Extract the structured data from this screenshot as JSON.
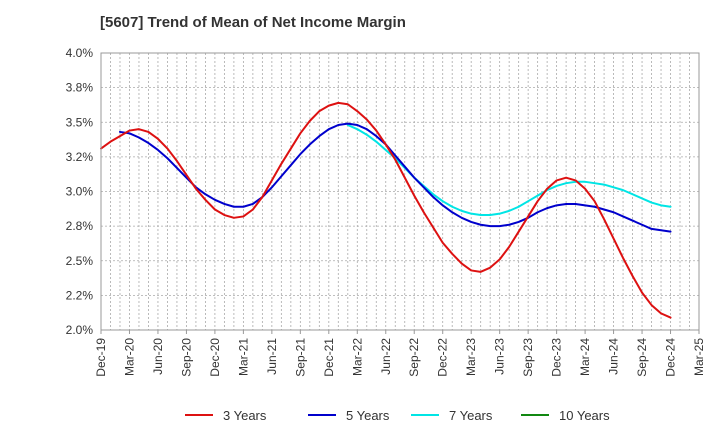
{
  "chart_data": {
    "type": "line",
    "title": "[5607]  Trend of Mean of Net Income Margin",
    "xlabel": "",
    "ylabel": "",
    "ylim": [
      2.0,
      4.0
    ],
    "yticks": [
      "4.0%",
      "3.8%",
      "3.5%",
      "3.2%",
      "3.0%",
      "2.8%",
      "2.5%",
      "2.2%",
      "2.0%"
    ],
    "ytick_values": [
      4.0,
      3.75,
      3.5,
      3.25,
      3.0,
      2.75,
      2.5,
      2.25,
      2.0
    ],
    "xticks": [
      "Dec-19",
      "Mar-20",
      "Jun-20",
      "Sep-20",
      "Dec-20",
      "Mar-21",
      "Jun-21",
      "Sep-21",
      "Dec-21",
      "Mar-22",
      "Jun-22",
      "Sep-22",
      "Dec-22",
      "Mar-23",
      "Jun-23",
      "Sep-23",
      "Dec-23",
      "Mar-24",
      "Jun-24",
      "Sep-24",
      "Dec-24",
      "Mar-25"
    ],
    "grid": true,
    "legend_position": "bottom",
    "colors": {
      "3 Years": "#dd1111",
      "5 Years": "#0000cc",
      "7 Years": "#00e5e5",
      "10 Years": "#118811"
    },
    "series": [
      {
        "name": "3 Years",
        "x": [
          "Dec-19",
          "Jan-20",
          "Feb-20",
          "Mar-20",
          "Apr-20",
          "May-20",
          "Jun-20",
          "Jul-20",
          "Aug-20",
          "Sep-20",
          "Oct-20",
          "Nov-20",
          "Dec-20",
          "Jan-21",
          "Feb-21",
          "Mar-21",
          "Apr-21",
          "May-21",
          "Jun-21",
          "Jul-21",
          "Aug-21",
          "Sep-21",
          "Oct-21",
          "Nov-21",
          "Dec-21",
          "Jan-22",
          "Feb-22",
          "Mar-22",
          "Apr-22",
          "May-22",
          "Jun-22",
          "Jul-22",
          "Aug-22",
          "Sep-22",
          "Oct-22",
          "Nov-22",
          "Dec-22",
          "Jan-23",
          "Feb-23",
          "Mar-23",
          "Apr-23",
          "May-23",
          "Jun-23",
          "Jul-23",
          "Aug-23",
          "Sep-23",
          "Oct-23",
          "Nov-23",
          "Dec-23",
          "Jan-24",
          "Feb-24",
          "Mar-24",
          "Apr-24",
          "May-24",
          "Jun-24",
          "Jul-24",
          "Aug-24",
          "Sep-24",
          "Oct-24",
          "Nov-24",
          "Dec-24"
        ],
        "values": [
          3.31,
          3.36,
          3.4,
          3.44,
          3.45,
          3.43,
          3.38,
          3.31,
          3.22,
          3.12,
          3.02,
          2.94,
          2.87,
          2.83,
          2.81,
          2.82,
          2.87,
          2.96,
          3.08,
          3.2,
          3.31,
          3.42,
          3.51,
          3.58,
          3.62,
          3.64,
          3.63,
          3.58,
          3.52,
          3.44,
          3.34,
          3.23,
          3.1,
          2.97,
          2.85,
          2.74,
          2.63,
          2.55,
          2.48,
          2.43,
          2.42,
          2.45,
          2.51,
          2.6,
          2.71,
          2.82,
          2.93,
          3.02,
          3.08,
          3.1,
          3.08,
          3.02,
          2.93,
          2.8,
          2.66,
          2.52,
          2.39,
          2.27,
          2.18,
          2.12,
          2.09
        ]
      },
      {
        "name": "5 Years",
        "x": [
          "Feb-20",
          "Mar-20",
          "Apr-20",
          "May-20",
          "Jun-20",
          "Jul-20",
          "Aug-20",
          "Sep-20",
          "Oct-20",
          "Nov-20",
          "Dec-20",
          "Jan-21",
          "Feb-21",
          "Mar-21",
          "Apr-21",
          "May-21",
          "Jun-21",
          "Jul-21",
          "Aug-21",
          "Sep-21",
          "Oct-21",
          "Nov-21",
          "Dec-21",
          "Jan-22",
          "Feb-22",
          "Mar-22",
          "Apr-22",
          "May-22",
          "Jun-22",
          "Jul-22",
          "Aug-22",
          "Sep-22",
          "Oct-22",
          "Nov-22",
          "Dec-22",
          "Jan-23",
          "Feb-23",
          "Mar-23",
          "Apr-23",
          "May-23",
          "Jun-23",
          "Jul-23",
          "Aug-23",
          "Sep-23",
          "Oct-23",
          "Nov-23",
          "Dec-23",
          "Jan-24",
          "Feb-24",
          "Mar-24",
          "Apr-24",
          "May-24",
          "Jun-24",
          "Jul-24",
          "Aug-24",
          "Sep-24",
          "Oct-24",
          "Nov-24",
          "Dec-24"
        ],
        "values": [
          3.43,
          3.42,
          3.39,
          3.35,
          3.3,
          3.24,
          3.17,
          3.1,
          3.03,
          2.98,
          2.94,
          2.91,
          2.89,
          2.89,
          2.91,
          2.96,
          3.03,
          3.11,
          3.19,
          3.27,
          3.34,
          3.4,
          3.45,
          3.48,
          3.49,
          3.48,
          3.45,
          3.4,
          3.34,
          3.26,
          3.18,
          3.1,
          3.03,
          2.96,
          2.9,
          2.85,
          2.81,
          2.78,
          2.76,
          2.75,
          2.75,
          2.76,
          2.78,
          2.81,
          2.85,
          2.88,
          2.9,
          2.91,
          2.91,
          2.9,
          2.89,
          2.87,
          2.85,
          2.82,
          2.79,
          2.76,
          2.73,
          2.72,
          2.71
        ]
      },
      {
        "name": "7 Years",
        "x": [
          "Feb-22",
          "Mar-22",
          "Apr-22",
          "May-22",
          "Jun-22",
          "Jul-22",
          "Aug-22",
          "Sep-22",
          "Oct-22",
          "Nov-22",
          "Dec-22",
          "Jan-23",
          "Feb-23",
          "Mar-23",
          "Apr-23",
          "May-23",
          "Jun-23",
          "Jul-23",
          "Aug-23",
          "Sep-23",
          "Oct-23",
          "Nov-23",
          "Dec-23",
          "Jan-24",
          "Feb-24",
          "Mar-24",
          "Apr-24",
          "May-24",
          "Jun-24",
          "Jul-24",
          "Aug-24",
          "Sep-24",
          "Oct-24",
          "Nov-24",
          "Dec-24"
        ],
        "values": [
          3.48,
          3.45,
          3.41,
          3.36,
          3.3,
          3.24,
          3.17,
          3.1,
          3.04,
          2.98,
          2.93,
          2.89,
          2.86,
          2.84,
          2.83,
          2.83,
          2.84,
          2.86,
          2.89,
          2.93,
          2.97,
          3.01,
          3.04,
          3.06,
          3.07,
          3.07,
          3.06,
          3.05,
          3.03,
          3.01,
          2.98,
          2.95,
          2.92,
          2.9,
          2.89
        ]
      },
      {
        "name": "10 Years",
        "x": [],
        "values": []
      }
    ]
  }
}
